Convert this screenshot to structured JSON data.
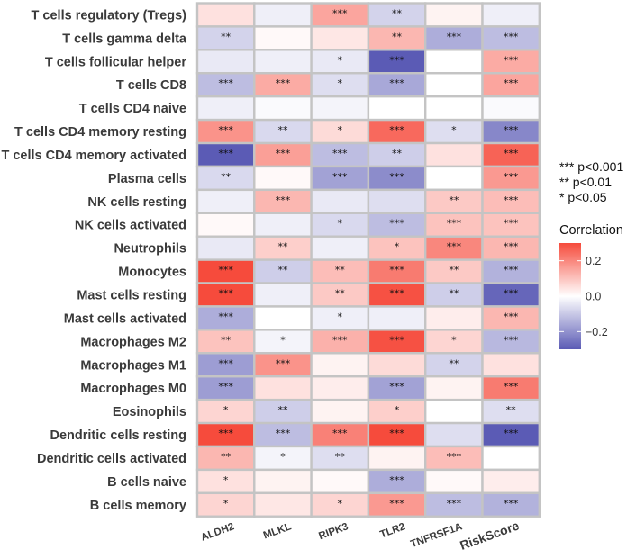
{
  "chart_data": {
    "type": "heatmap",
    "rows": [
      "T cells regulatory (Tregs)",
      "T cells gamma delta",
      "T cells follicular helper",
      "T cells CD8",
      "T cells CD4 naive",
      "T cells CD4 memory resting",
      "T cells CD4 memory activated",
      "Plasma cells",
      "NK cells resting",
      "NK cells activated",
      "Neutrophils",
      "Monocytes",
      "Mast cells resting",
      "Mast cells activated",
      "Macrophages M2",
      "Macrophages M1",
      "Macrophages M0",
      "Eosinophils",
      "Dendritic cells resting",
      "Dendritic cells activated",
      "B cells naive",
      "B cells memory"
    ],
    "columns": [
      "ALDH2",
      "MLKL",
      "RIPK3",
      "TLR2",
      "TNFRSF1A",
      "RiskScore"
    ],
    "values": [
      [
        0.05,
        -0.03,
        0.15,
        -0.08,
        0.02,
        -0.03
      ],
      [
        -0.08,
        0.01,
        0.04,
        0.12,
        -0.15,
        -0.12
      ],
      [
        -0.04,
        -0.03,
        -0.04,
        -0.32,
        0.0,
        0.14
      ],
      [
        -0.12,
        0.14,
        -0.06,
        -0.16,
        0.0,
        0.15
      ],
      [
        -0.03,
        -0.01,
        -0.02,
        0.0,
        0.0,
        -0.01
      ],
      [
        0.18,
        -0.07,
        0.06,
        0.25,
        -0.06,
        -0.22
      ],
      [
        -0.3,
        0.16,
        -0.12,
        -0.09,
        0.05,
        0.26
      ],
      [
        -0.07,
        0.01,
        -0.17,
        -0.21,
        0.0,
        0.17
      ],
      [
        -0.03,
        0.12,
        -0.04,
        -0.06,
        0.09,
        0.11
      ],
      [
        0.01,
        -0.03,
        -0.07,
        -0.12,
        0.1,
        0.1
      ],
      [
        -0.04,
        0.08,
        -0.03,
        0.1,
        0.2,
        0.12
      ],
      [
        0.31,
        -0.09,
        0.11,
        0.22,
        0.09,
        -0.14
      ],
      [
        0.31,
        -0.03,
        0.09,
        0.29,
        -0.09,
        -0.28
      ],
      [
        -0.15,
        0.0,
        -0.03,
        -0.03,
        0.03,
        0.12
      ],
      [
        0.1,
        -0.02,
        0.13,
        0.29,
        0.07,
        -0.13
      ],
      [
        -0.18,
        0.18,
        0.02,
        0.06,
        -0.08,
        0.05
      ],
      [
        -0.18,
        0.05,
        0.03,
        -0.17,
        0.02,
        0.22
      ],
      [
        0.07,
        -0.09,
        0.02,
        0.08,
        0.0,
        -0.06
      ],
      [
        0.3,
        -0.12,
        0.21,
        0.31,
        -0.06,
        -0.31
      ],
      [
        0.12,
        -0.02,
        -0.06,
        0.02,
        0.11,
        0.0
      ],
      [
        0.05,
        0.02,
        0.01,
        -0.15,
        0.01,
        0.03
      ],
      [
        0.07,
        0.04,
        0.07,
        0.17,
        -0.12,
        -0.14
      ]
    ],
    "significance": [
      [
        "",
        "",
        "***",
        "**",
        "",
        ""
      ],
      [
        "**",
        "",
        "",
        "**",
        "***",
        "***"
      ],
      [
        "",
        "",
        "*",
        "***",
        "",
        "***"
      ],
      [
        "***",
        "***",
        "*",
        "***",
        "",
        "***"
      ],
      [
        "",
        "",
        "",
        "",
        "",
        ""
      ],
      [
        "***",
        "**",
        "*",
        "***",
        "*",
        "***"
      ],
      [
        "***",
        "***",
        "***",
        "**",
        "",
        "***"
      ],
      [
        "**",
        "",
        "***",
        "***",
        "",
        "***"
      ],
      [
        "",
        "***",
        "",
        "",
        "**",
        "***"
      ],
      [
        "",
        "",
        "*",
        "***",
        "***",
        "***"
      ],
      [
        "",
        "**",
        "",
        "*",
        "***",
        "***"
      ],
      [
        "***",
        "**",
        "**",
        "***",
        "**",
        "***"
      ],
      [
        "***",
        "",
        "**",
        "***",
        "**",
        "***"
      ],
      [
        "***",
        "",
        "*",
        "",
        "",
        "***"
      ],
      [
        "**",
        "*",
        "***",
        "***",
        "*",
        "***"
      ],
      [
        "***",
        "***",
        "",
        "",
        "**",
        ""
      ],
      [
        "***",
        "",
        "",
        "***",
        "",
        "***"
      ],
      [
        "*",
        "**",
        "",
        "*",
        "",
        "**"
      ],
      [
        "***",
        "***",
        "***",
        "***",
        "",
        "***"
      ],
      [
        "**",
        "*",
        "**",
        "",
        "***",
        ""
      ],
      [
        "*",
        "",
        "",
        "***",
        "",
        ""
      ],
      [
        "*",
        "",
        "*",
        "***",
        "***",
        "***"
      ]
    ],
    "colorscale": {
      "low_color": "#5b5bb5",
      "mid_color": "#ffffff",
      "high_color": "#f64b3c",
      "min": -0.3,
      "max": 0.3,
      "ticks": [
        0.2,
        0.0,
        -0.2
      ],
      "tick_labels": [
        "0.2",
        "0.0",
        "−0.2"
      ]
    },
    "legend": {
      "significance_labels": [
        "***  p<0.001",
        "**  p<0.01",
        "*  p<0.05"
      ],
      "title": "Correlation"
    },
    "grid_color": "#c4c4c4"
  }
}
